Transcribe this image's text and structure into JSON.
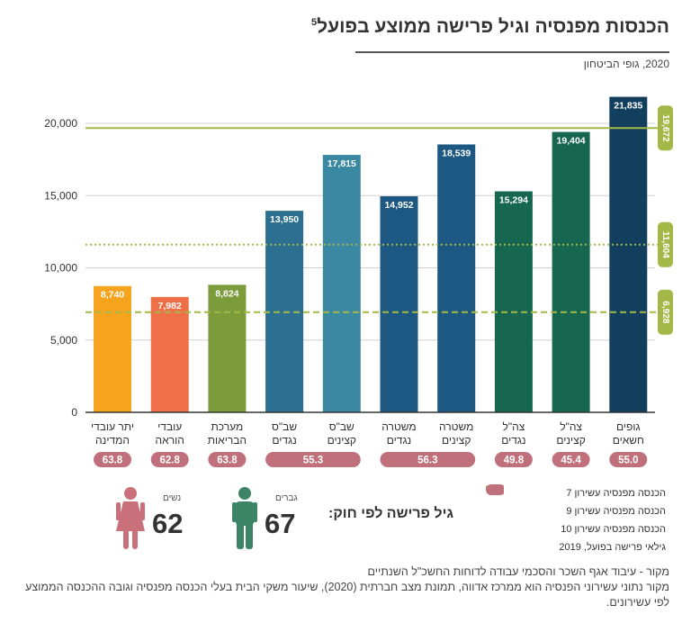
{
  "title": "הכנסות מפנסיה וגיל פרישה ממוצע בפועל",
  "title_footnote": "5",
  "subtitle": "2020, גופי הביטחון",
  "chart_data": {
    "type": "bar",
    "title": "הכנסות מפנסיה וגיל פרישה ממוצע בפועל",
    "categories": [
      [
        "יתר עובדי",
        "המדינה"
      ],
      [
        "עובדי",
        "הוראה"
      ],
      [
        "מערכת",
        "הבריאות"
      ],
      [
        "שב\"ס",
        "נגדים"
      ],
      [
        "שב\"ס",
        "קצינים"
      ],
      [
        "משטרה",
        "נגדים"
      ],
      [
        "משטרה",
        "קצינים"
      ],
      [
        "צה\"ל",
        "נגדים"
      ],
      [
        "צה\"ל",
        "קצינים"
      ],
      [
        "גופים",
        "חשאים"
      ]
    ],
    "values": [
      8740,
      7982,
      8824,
      13950,
      17815,
      14952,
      18539,
      15294,
      19404,
      21835
    ],
    "value_labels": [
      "8,740",
      "7,982",
      "8,824",
      "13,950",
      "17,815",
      "14,952",
      "18,539",
      "15,294",
      "19,404",
      "21,835"
    ],
    "colors": [
      "#f6a41d",
      "#ef7048",
      "#7c9b3b",
      "#2c6f90",
      "#3a88a2",
      "#1d5883",
      "#1d5883",
      "#176650",
      "#176650",
      "#133f5e"
    ],
    "ylim": [
      0,
      22000
    ],
    "yticks": [
      0,
      5000,
      10000,
      15000,
      20000
    ],
    "ytick_labels": [
      "0",
      "5,000",
      "10,000",
      "15,000",
      "20,000"
    ],
    "reference_lines": [
      {
        "name": "הכנסה מפנסיה עשירון 7",
        "value": 6928,
        "label": "6,928",
        "style": "dashed"
      },
      {
        "name": "הכנסה מפנסיה עשירון 9",
        "value": 11604,
        "label": "11,604",
        "style": "dotted"
      },
      {
        "name": "הכנסה מפנסיה עשירון 10",
        "value": 19672,
        "label": "19,672",
        "style": "solid"
      }
    ],
    "reference_color": "#a3b847",
    "retirement_ages": [
      {
        "value": "63.8",
        "span": [
          0,
          0
        ]
      },
      {
        "value": "62.8",
        "span": [
          1,
          1
        ]
      },
      {
        "value": "63.8",
        "span": [
          2,
          2
        ]
      },
      {
        "value": "55.3",
        "span": [
          3,
          4
        ]
      },
      {
        "value": "56.3",
        "span": [
          5,
          6
        ]
      },
      {
        "value": "49.8",
        "span": [
          7,
          7
        ]
      },
      {
        "value": "45.4",
        "span": [
          8,
          8
        ]
      },
      {
        "value": "55.0",
        "span": [
          9,
          9
        ]
      }
    ],
    "age_color": "#c0707a",
    "legend_position": "bottom-right"
  },
  "legend": {
    "items": [
      "הכנסה מפנסיה עשירון 7",
      "הכנסה מפנסיה עשירון 9",
      "הכנסה מפנסיה עשירון 10",
      "גילאי פרישה בפועל, 2019"
    ]
  },
  "retirement_law": {
    "label": "גיל פרישה לפי חוק:",
    "men_label": "גברים",
    "men_age": "67",
    "men_color": "#3d8466",
    "women_label": "נשים",
    "women_age": "62",
    "women_color": "#c9707a"
  },
  "source": {
    "line1": "מקור - עיבוד אגף השכר והסכמי עבודה לדוחות החשכ\"ל השנתיים",
    "line2": "מקור נתוני עשירוני הפנסיה הוא ממרכז אדווה, תמונת מצב חברתית (2020), שיעור משקי הבית בעלי הכנסה מפנסיה וגובה ההכנסה הממוצע לפי עשירונים."
  }
}
